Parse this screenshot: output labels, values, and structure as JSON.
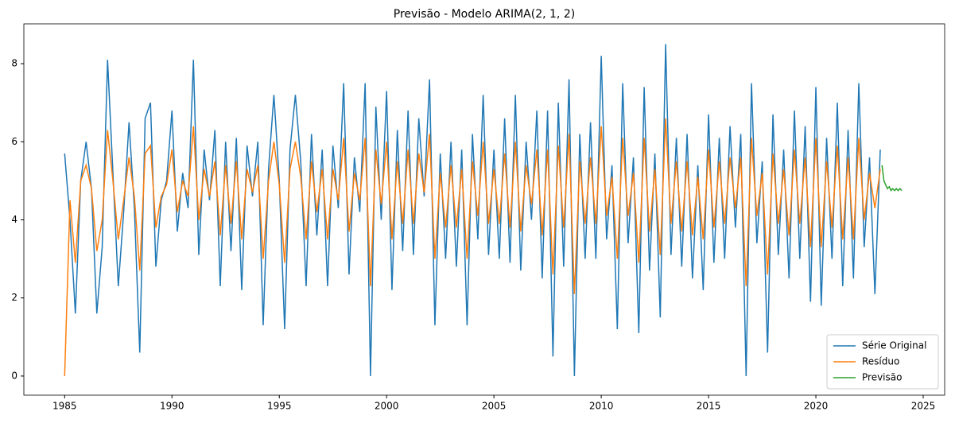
{
  "chart_data": {
    "type": "line",
    "title": "Previsão - Modelo ARIMA(2, 1, 2)",
    "x": [
      1985,
      1985.25,
      1985.5,
      1985.75,
      1986,
      1986.25,
      1986.5,
      1986.75,
      1987,
      1987.25,
      1987.5,
      1987.75,
      1988,
      1988.25,
      1988.5,
      1988.75,
      1989,
      1989.25,
      1989.5,
      1989.75,
      1990,
      1990.25,
      1990.5,
      1990.75,
      1991,
      1991.25,
      1991.5,
      1991.75,
      1992,
      1992.25,
      1992.5,
      1992.75,
      1993,
      1993.25,
      1993.5,
      1993.75,
      1994,
      1994.25,
      1994.5,
      1994.75,
      1995,
      1995.25,
      1995.5,
      1995.75,
      1996,
      1996.25,
      1996.5,
      1996.75,
      1997,
      1997.25,
      1997.5,
      1997.75,
      1998,
      1998.25,
      1998.5,
      1998.75,
      1999,
      1999.25,
      1999.5,
      1999.75,
      2000,
      2000.25,
      2000.5,
      2000.75,
      2001,
      2001.25,
      2001.5,
      2001.75,
      2002,
      2002.25,
      2002.5,
      2002.75,
      2003,
      2003.25,
      2003.5,
      2003.75,
      2004,
      2004.25,
      2004.5,
      2004.75,
      2005,
      2005.25,
      2005.5,
      2005.75,
      2006,
      2006.25,
      2006.5,
      2006.75,
      2007,
      2007.25,
      2007.5,
      2007.75,
      2008,
      2008.25,
      2008.5,
      2008.75,
      2009,
      2009.25,
      2009.5,
      2009.75,
      2010,
      2010.25,
      2010.5,
      2010.75,
      2011,
      2011.25,
      2011.5,
      2011.75,
      2012,
      2012.25,
      2012.5,
      2012.75,
      2013,
      2013.25,
      2013.5,
      2013.75,
      2014,
      2014.25,
      2014.5,
      2014.75,
      2015,
      2015.25,
      2015.5,
      2015.75,
      2016,
      2016.25,
      2016.5,
      2016.75,
      2017,
      2017.25,
      2017.5,
      2017.75,
      2018,
      2018.25,
      2018.5,
      2018.75,
      2019,
      2019.25,
      2019.5,
      2019.75,
      2020,
      2020.25,
      2020.5,
      2020.75,
      2021,
      2021.25,
      2021.5,
      2021.75,
      2022,
      2022.25,
      2022.5,
      2022.75,
      2023
    ],
    "series": [
      {
        "name": "Série Original",
        "color": "#1f77b4",
        "values": [
          5.7,
          4.0,
          1.6,
          5.0,
          6.0,
          4.8,
          1.6,
          3.3,
          8.1,
          5.2,
          2.3,
          4.2,
          6.5,
          4.3,
          0.6,
          6.6,
          7.0,
          2.8,
          4.5,
          5.0,
          6.8,
          3.7,
          5.2,
          4.3,
          8.1,
          3.1,
          5.8,
          4.5,
          6.3,
          2.3,
          6.0,
          3.2,
          6.1,
          2.2,
          5.9,
          4.6,
          6.0,
          1.3,
          5.3,
          7.2,
          5.0,
          1.2,
          5.8,
          7.2,
          5.5,
          2.3,
          6.2,
          3.6,
          5.8,
          2.3,
          5.9,
          4.3,
          7.5,
          2.6,
          5.6,
          4.2,
          7.5,
          0.0,
          6.9,
          4.0,
          7.3,
          2.2,
          6.3,
          3.2,
          6.8,
          3.1,
          6.6,
          4.6,
          7.6,
          1.3,
          5.7,
          3.0,
          6.0,
          2.8,
          5.8,
          1.3,
          6.2,
          3.5,
          7.2,
          3.1,
          5.8,
          3.0,
          6.6,
          2.9,
          7.2,
          2.7,
          6.0,
          4.0,
          6.8,
          2.5,
          6.8,
          0.5,
          7.0,
          2.8,
          7.6,
          0.0,
          6.2,
          3.0,
          6.5,
          3.0,
          8.2,
          3.5,
          5.4,
          1.2,
          7.5,
          3.4,
          5.6,
          1.1,
          7.4,
          2.7,
          5.7,
          1.5,
          8.5,
          3.1,
          6.1,
          2.8,
          6.2,
          2.5,
          5.4,
          2.2,
          6.7,
          2.9,
          6.1,
          3.0,
          6.4,
          3.8,
          6.2,
          0.0,
          7.5,
          3.4,
          5.5,
          0.6,
          6.7,
          3.1,
          5.8,
          2.5,
          6.8,
          3.0,
          6.4,
          1.9,
          7.4,
          1.8,
          6.1,
          3.0,
          7.0,
          2.3,
          6.3,
          2.5,
          7.5,
          3.3,
          5.6,
          2.1,
          5.8
        ]
      },
      {
        "name": "Resíduo",
        "color": "#ff7f0e",
        "values": [
          0.0,
          4.5,
          2.9,
          5.0,
          5.4,
          4.8,
          3.2,
          4.0,
          6.3,
          5.0,
          3.5,
          4.5,
          5.6,
          4.6,
          2.7,
          5.7,
          5.9,
          3.8,
          4.6,
          4.9,
          5.8,
          4.2,
          5.0,
          4.6,
          6.4,
          4.0,
          5.3,
          4.6,
          5.5,
          3.6,
          5.4,
          3.9,
          5.5,
          3.5,
          5.3,
          4.7,
          5.4,
          3.0,
          5.0,
          6.0,
          4.9,
          2.9,
          5.3,
          6.0,
          5.1,
          3.5,
          5.5,
          4.2,
          5.3,
          3.5,
          5.3,
          4.5,
          6.1,
          3.7,
          5.2,
          4.5,
          6.1,
          2.3,
          5.8,
          4.4,
          6.0,
          3.5,
          5.5,
          3.9,
          5.8,
          3.9,
          5.7,
          4.7,
          6.2,
          3.0,
          5.2,
          3.8,
          5.4,
          3.8,
          5.3,
          3.0,
          5.5,
          4.1,
          6.0,
          3.9,
          5.3,
          3.9,
          5.7,
          3.8,
          6.0,
          3.7,
          5.4,
          4.4,
          5.8,
          3.6,
          5.8,
          2.6,
          5.9,
          3.8,
          6.2,
          2.1,
          5.5,
          3.9,
          5.6,
          3.9,
          6.4,
          4.1,
          5.1,
          3.0,
          6.1,
          4.1,
          5.2,
          2.9,
          6.1,
          3.7,
          5.3,
          3.1,
          6.6,
          3.9,
          5.5,
          3.7,
          5.5,
          3.6,
          5.1,
          3.5,
          5.8,
          3.8,
          5.5,
          3.9,
          5.6,
          4.3,
          5.6,
          2.3,
          6.1,
          4.1,
          5.2,
          2.6,
          5.7,
          3.9,
          5.3,
          3.6,
          5.8,
          3.9,
          5.6,
          3.3,
          6.1,
          3.3,
          5.5,
          3.8,
          5.9,
          3.5,
          5.6,
          3.5,
          6.1,
          4.0,
          5.2,
          4.3,
          5.3
        ]
      },
      {
        "name": "Previsão",
        "color": "#2ca02c",
        "x": [
          2023.08,
          2023.17,
          2023.25,
          2023.33,
          2023.42,
          2023.5,
          2023.58,
          2023.67,
          2023.75,
          2023.83,
          2023.92,
          2024.0
        ],
        "values": [
          5.4,
          5.0,
          4.9,
          4.8,
          4.85,
          4.75,
          4.8,
          4.75,
          4.8,
          4.75,
          4.8,
          4.75
        ]
      }
    ],
    "xlim": [
      1983.1,
      2026
    ],
    "ylim": [
      -0.49,
      9.02
    ],
    "xticks": [
      1985,
      1990,
      1995,
      2000,
      2005,
      2010,
      2015,
      2020,
      2025
    ],
    "yticks": [
      0,
      2,
      4,
      6,
      8
    ],
    "grid": false,
    "legend": "lower right"
  }
}
